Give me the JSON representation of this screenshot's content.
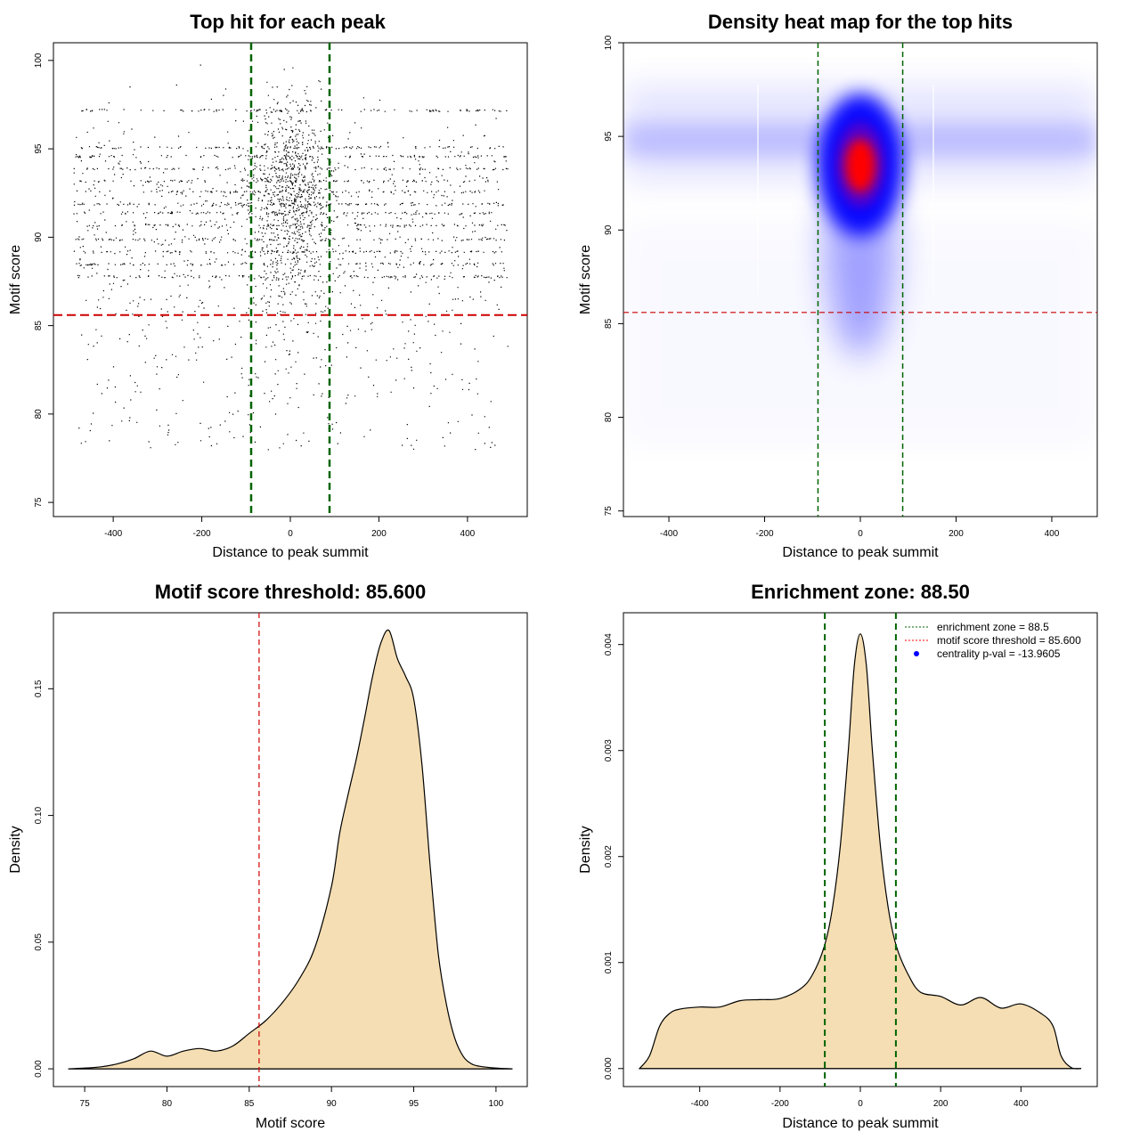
{
  "chart_data": [
    {
      "type": "scatter",
      "title": "Top hit for each peak",
      "xlabel": "Distance to peak summit",
      "ylabel": "Motif score",
      "xlim": [
        -535,
        535
      ],
      "ylim": [
        74.2,
        101
      ],
      "xticks": [
        -400,
        -200,
        0,
        200,
        400
      ],
      "yticks": [
        75,
        80,
        85,
        90,
        95,
        100
      ],
      "threshold_line": 85.6,
      "zone_lines": [
        -88.5,
        88.5
      ],
      "point_count": 9000,
      "point_distribution": "uniform over -490..490 with dense central cluster near 0; scores concentrated 90-96"
    },
    {
      "type": "heatmap",
      "title": "Density heat map for the top hits",
      "xlabel": "Distance to peak summit",
      "ylabel": "Motif score",
      "xlim": [
        -495,
        495
      ],
      "ylim": [
        74.7,
        100.0
      ],
      "xticks": [
        -400,
        -200,
        0,
        200,
        400
      ],
      "yticks": [
        75,
        80,
        85,
        90,
        95,
        100
      ],
      "threshold_line": 85.6,
      "zone_lines": [
        -88.5,
        88.5
      ],
      "hotspot": {
        "x": 0,
        "y": 93.5
      }
    },
    {
      "type": "area",
      "title": "Motif score threshold: 85.600",
      "xlabel": "Motif score",
      "ylabel": "Density",
      "xlim": [
        73.1,
        101.9
      ],
      "ylim": [
        -0.007,
        0.18
      ],
      "xticks": [
        75,
        80,
        85,
        90,
        95,
        100
      ],
      "yticks": [
        0.0,
        0.05,
        0.1,
        0.15
      ],
      "ytick_labels": [
        "0.00",
        "0.05",
        "0.10",
        "0.15"
      ],
      "threshold_line": 85.6,
      "x": [
        74,
        75,
        76,
        77,
        78,
        79,
        80,
        81,
        82,
        83,
        84,
        85,
        86,
        87,
        88,
        89,
        90,
        90.5,
        91,
        91.5,
        92,
        92.5,
        93,
        93.5,
        94,
        94.5,
        95,
        95.5,
        96,
        96.5,
        97,
        97.5,
        98,
        98.5,
        99,
        100,
        101
      ],
      "y": [
        0,
        0.0003,
        0.0008,
        0.002,
        0.004,
        0.007,
        0.005,
        0.007,
        0.008,
        0.007,
        0.009,
        0.014,
        0.019,
        0.026,
        0.035,
        0.048,
        0.072,
        0.093,
        0.108,
        0.122,
        0.138,
        0.155,
        0.168,
        0.173,
        0.162,
        0.155,
        0.146,
        0.12,
        0.08,
        0.045,
        0.025,
        0.012,
        0.005,
        0.002,
        0.001,
        0.0003,
        0
      ]
    },
    {
      "type": "area",
      "title": "Enrichment zone: 88.50",
      "xlabel": "Distance to peak summit",
      "ylabel": "Density",
      "xlim": [
        -590,
        590
      ],
      "ylim": [
        -0.00017,
        0.0043
      ],
      "xticks": [
        -400,
        -200,
        0,
        200,
        400
      ],
      "yticks": [
        0.0,
        0.001,
        0.002,
        0.003,
        0.004
      ],
      "ytick_labels": [
        "0.000",
        "0.001",
        "0.002",
        "0.003",
        "0.004"
      ],
      "zone_lines": [
        -88.5,
        88.5
      ],
      "x": [
        -550,
        -525,
        -500,
        -475,
        -450,
        -400,
        -350,
        -300,
        -250,
        -200,
        -150,
        -120,
        -90,
        -70,
        -50,
        -30,
        -15,
        0,
        15,
        30,
        50,
        70,
        90,
        120,
        150,
        200,
        250,
        300,
        350,
        400,
        450,
        480,
        500,
        525,
        550
      ],
      "y": [
        0,
        0.00012,
        0.0004,
        0.00052,
        0.00056,
        0.00058,
        0.00058,
        0.00064,
        0.00065,
        0.00066,
        0.00075,
        0.00088,
        0.00115,
        0.0015,
        0.0021,
        0.003,
        0.0038,
        0.0041,
        0.0038,
        0.003,
        0.0021,
        0.0015,
        0.00115,
        0.00088,
        0.00072,
        0.00068,
        0.0006,
        0.00067,
        0.00057,
        0.00061,
        0.00052,
        0.0004,
        0.00012,
        1e-05,
        0
      ]
    }
  ],
  "legend": {
    "items": [
      {
        "label": "enrichment zone = 88.5",
        "color": "#006400",
        "style": "dotted"
      },
      {
        "label": "motif score threshold = 85.600",
        "color": "#ff0000",
        "style": "dotted"
      },
      {
        "label": "centrality p-val = -13.9605",
        "color": "#0000ff",
        "style": "point"
      }
    ]
  },
  "colors": {
    "fill": "#f5deb3",
    "threshold": "#cc0000",
    "zone": "#006400",
    "heat_low": "#ffffff",
    "heat_mid": "#0000ff",
    "heat_high": "#ff0000"
  }
}
